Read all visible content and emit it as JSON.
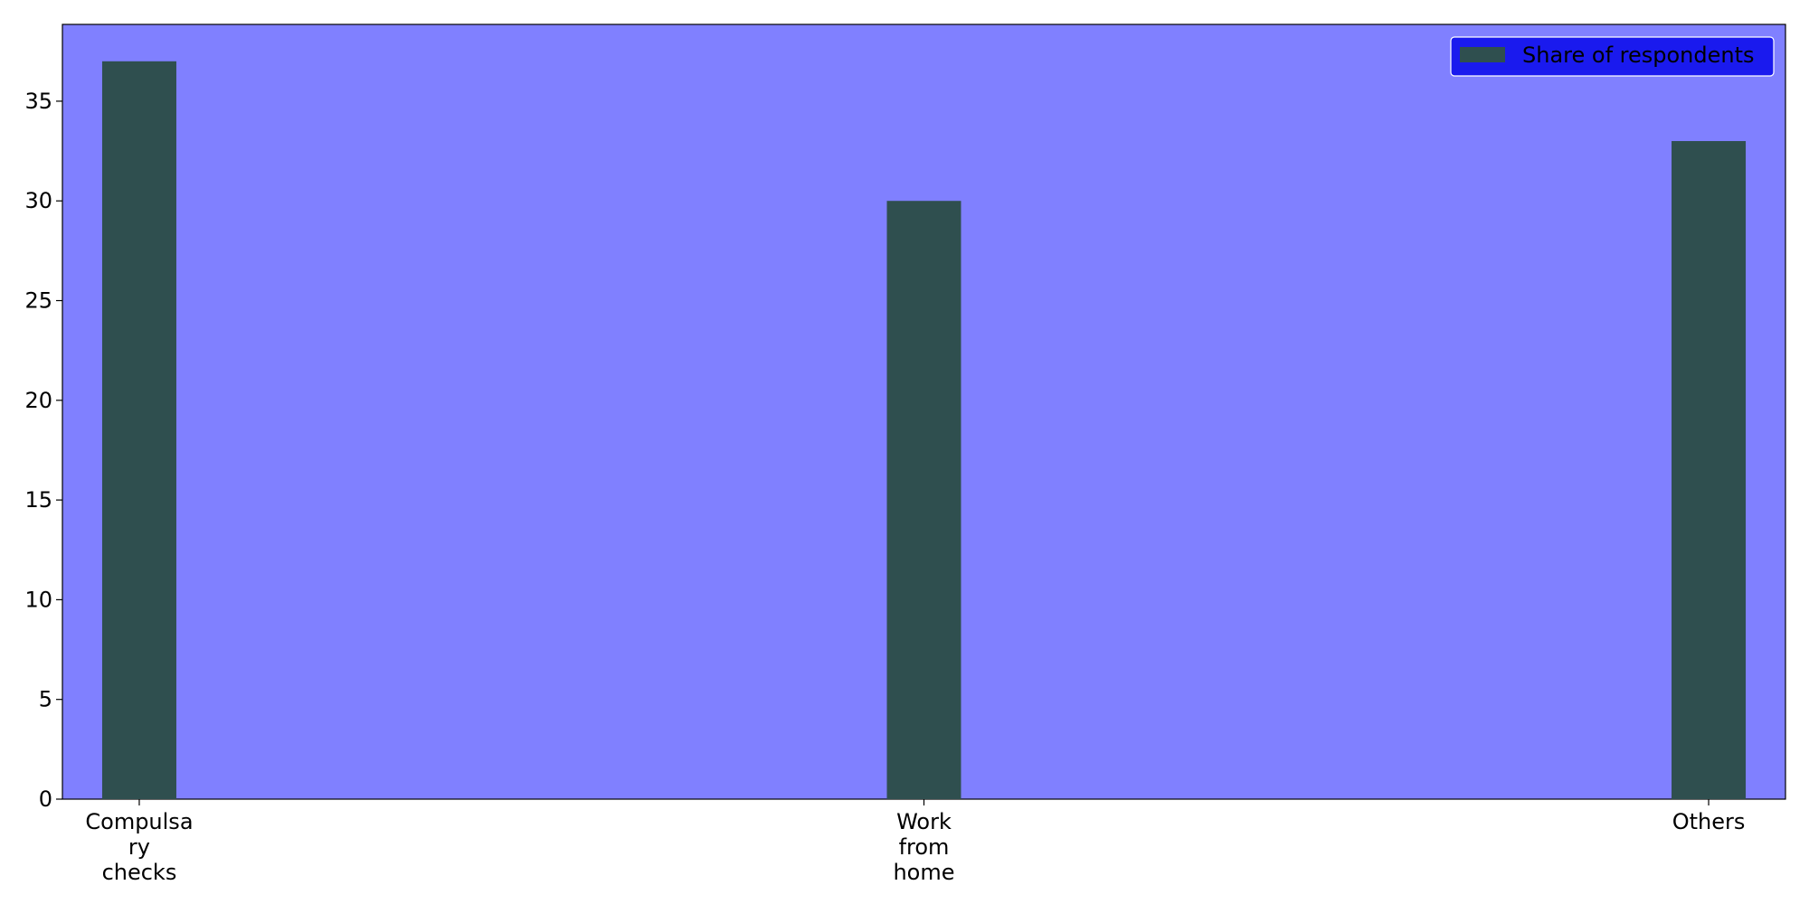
{
  "chart_data": {
    "type": "bar",
    "categories": [
      [
        "Compulsa",
        "ry",
        "checks"
      ],
      [
        "Work",
        "from",
        "home"
      ],
      [
        "Others"
      ]
    ],
    "series": [
      {
        "name": "Share of respondents",
        "values": [
          37,
          30,
          33
        ]
      }
    ],
    "title": "",
    "xlabel": "",
    "ylabel": "",
    "ylim": [
      0,
      38.85
    ],
    "yticks": [
      0,
      5,
      10,
      15,
      20,
      25,
      30,
      35
    ],
    "grid": false,
    "legend_position": "top-right",
    "colors": {
      "plot_background": "#8080ff",
      "bar": "#2f4f4f",
      "legend_background": "#1a1aee",
      "axis": "#000000"
    }
  }
}
